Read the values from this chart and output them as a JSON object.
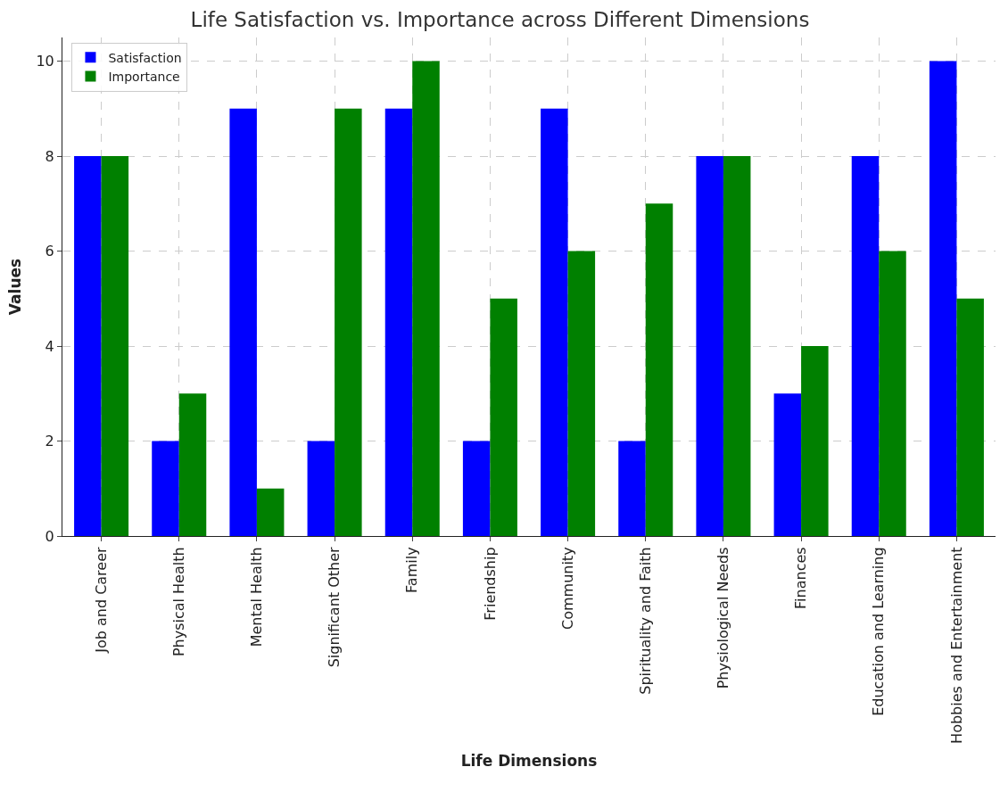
{
  "chart_data": {
    "type": "bar",
    "title": "Life Satisfaction vs. Importance across Different Dimensions",
    "xlabel": "Life Dimensions",
    "ylabel": "Values",
    "categories": [
      "Job and Career",
      "Physical Health",
      "Mental Health",
      "Significant Other",
      "Family",
      "Friendship",
      "Community",
      "Spirituality and Faith",
      "Physiological Needs",
      "Finances",
      "Education and Learning",
      "Hobbies and Entertainment"
    ],
    "series": [
      {
        "name": "Satisfaction",
        "color": "#0000ff",
        "values": [
          8,
          2,
          9,
          2,
          9,
          2,
          9,
          2,
          8,
          3,
          8,
          10
        ]
      },
      {
        "name": "Importance",
        "color": "#008000",
        "values": [
          8,
          3,
          1,
          9,
          10,
          5,
          6,
          7,
          8,
          4,
          6,
          5
        ]
      }
    ],
    "ylim": [
      0,
      10.5
    ],
    "yticks": [
      0,
      2,
      4,
      6,
      8,
      10
    ],
    "grid": true,
    "legend": "top left"
  }
}
